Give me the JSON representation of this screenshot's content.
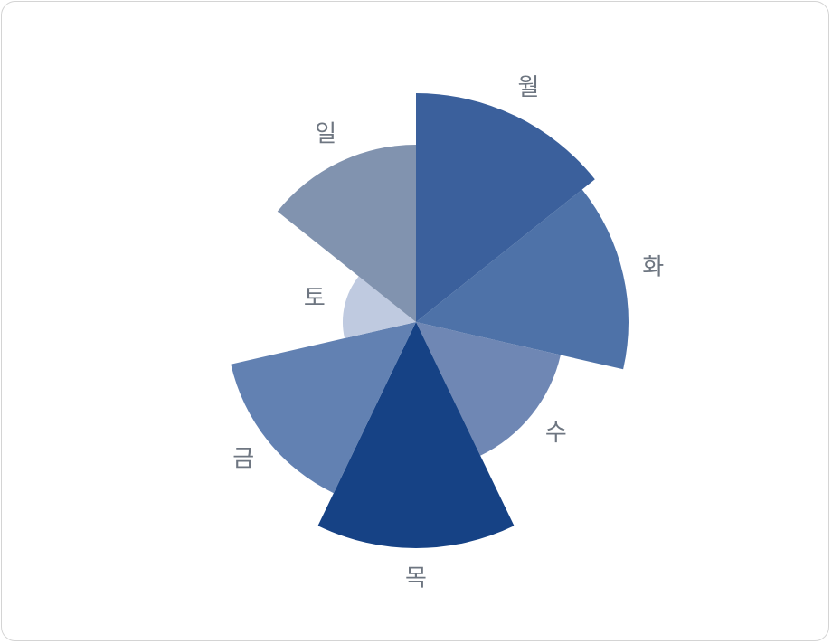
{
  "chart_data": {
    "type": "polar-area",
    "categories": [
      "월",
      "화",
      "수",
      "목",
      "금",
      "토",
      "일"
    ],
    "values": [
      253,
      235,
      164,
      250,
      210,
      81,
      196
    ],
    "colors": [
      "#3b609c",
      "#4e72a8",
      "#6f87b4",
      "#164285",
      "#6281b2",
      "#bfcae0",
      "#8193af"
    ],
    "legend": "none",
    "grid": false
  }
}
